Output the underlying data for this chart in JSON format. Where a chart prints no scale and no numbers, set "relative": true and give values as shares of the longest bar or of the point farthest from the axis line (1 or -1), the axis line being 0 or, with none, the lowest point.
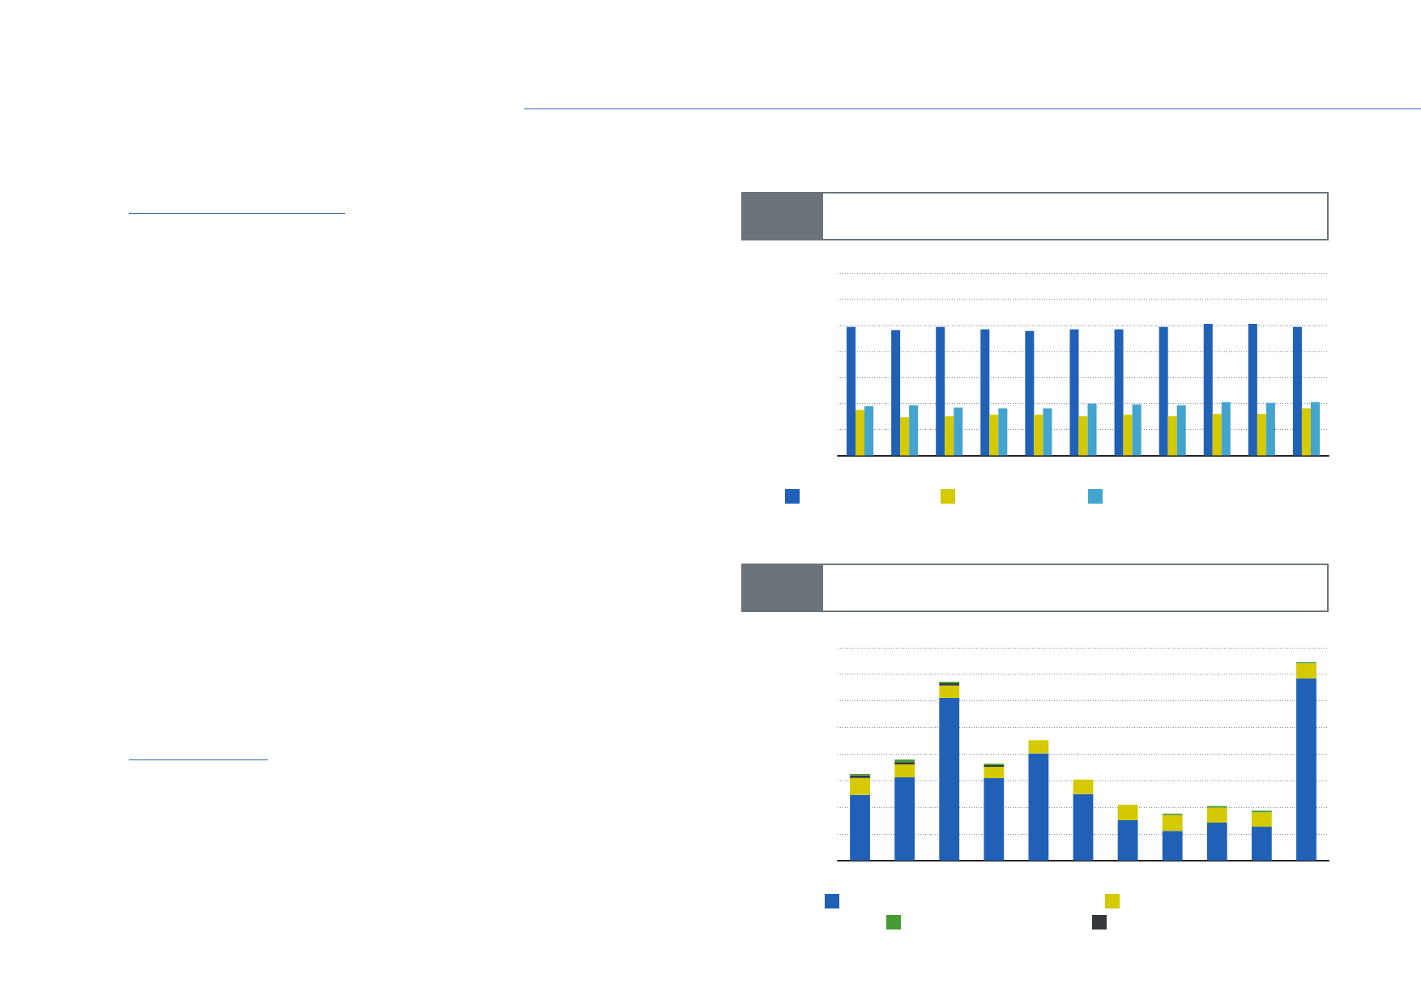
{
  "chart_data": [
    {
      "type": "bar",
      "relative": true,
      "categories": [
        null,
        null,
        null,
        null,
        null,
        null,
        null,
        null,
        null,
        null,
        null
      ],
      "grid": "y",
      "series": [
        {
          "color": "#2061b7",
          "values": [
            0.976,
            0.952,
            0.976,
            0.958,
            0.946,
            0.958,
            0.958,
            0.976,
            1,
            1,
            0.976
          ]
        },
        {
          "color": "#d5c900",
          "values": [
            0.345,
            0.291,
            0.297,
            0.309,
            0.309,
            0.297,
            0.309,
            0.297,
            0.315,
            0.315,
            0.357
          ]
        },
        {
          "color": "#42a4cf",
          "values": [
            0.375,
            0.381,
            0.363,
            0.357,
            0.357,
            0.393,
            0.387,
            0.381,
            0.405,
            0.399,
            0.405
          ]
        }
      ]
    },
    {
      "type": "bar",
      "relative": true,
      "stacked": true,
      "categories": [
        null,
        null,
        null,
        null,
        null,
        null,
        null,
        null,
        null,
        null,
        null
      ],
      "grid": "y",
      "series": [
        {
          "color": "#2061b7",
          "values": [
            0.331,
            0.419,
            0.82,
            0.415,
            0.54,
            0.335,
            0.203,
            0.149,
            0.191,
            0.17,
            0.918
          ]
        },
        {
          "color": "#d5c900",
          "values": [
            0.085,
            0.065,
            0.062,
            0.057,
            0.066,
            0.073,
            0.078,
            0.08,
            0.075,
            0.073,
            0.076
          ]
        },
        {
          "color": "#35393d",
          "values": [
            0.013,
            0.012,
            0.011,
            0.009,
            null,
            null,
            null,
            null,
            null,
            null,
            null
          ]
        },
        {
          "color": "#449c33",
          "values": [
            0.007,
            0.013,
            0.008,
            0.007,
            null,
            null,
            null,
            0.007,
            0.008,
            0.008,
            0.006
          ]
        }
      ]
    }
  ]
}
